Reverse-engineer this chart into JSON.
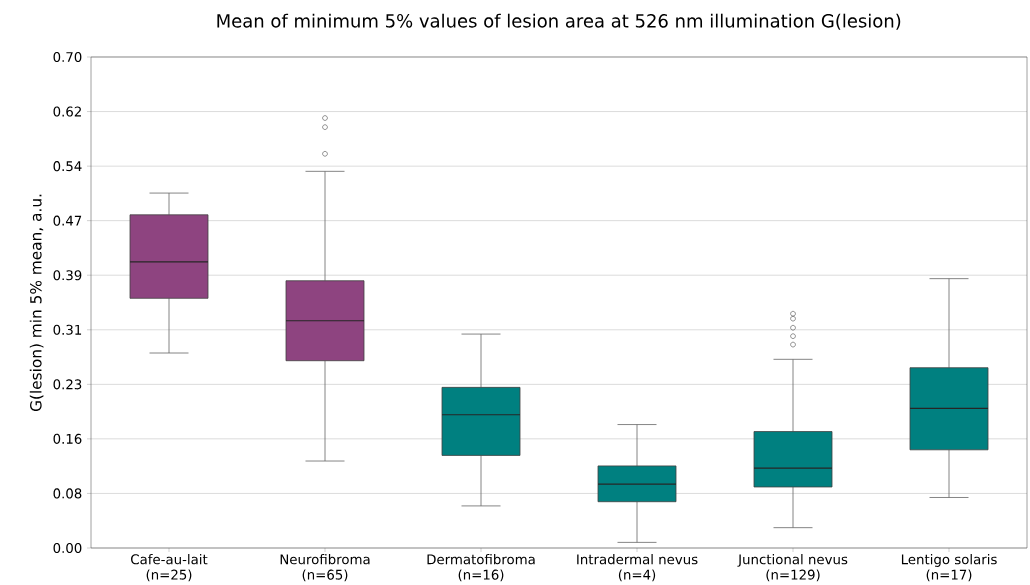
{
  "chart_data": {
    "type": "box",
    "title": "Mean of minimum 5% values of lesion area at 526 nm illumination G(lesion)",
    "ylabel": "G(lesion) min 5% mean, a.u.",
    "categories": [
      "Cafe-au-lait\n(n=25)",
      "Neurofibroma\n(n=65)",
      "Dermatofibroma\n(n=16)",
      "Intradermal nevus\n(n=4)",
      "Junctional nevus\n(n=129)",
      "Lentigo solaris\n(n=17)"
    ],
    "colors": [
      "#8e4480",
      "#8e4480",
      "#008080",
      "#008080",
      "#008080",
      "#008080"
    ],
    "boxes": [
      {
        "low": 0.278,
        "q1": 0.356,
        "median": 0.408,
        "q3": 0.475,
        "high": 0.506
      },
      {
        "low": 0.124,
        "q1": 0.267,
        "median": 0.324,
        "q3": 0.381,
        "high": 0.537,
        "outliers": [
          0.562,
          0.6,
          0.613
        ]
      },
      {
        "low": 0.06,
        "q1": 0.132,
        "median": 0.19,
        "q3": 0.229,
        "high": 0.305
      },
      {
        "low": 0.008,
        "q1": 0.066,
        "median": 0.091,
        "q3": 0.117,
        "high": 0.176
      },
      {
        "low": 0.029,
        "q1": 0.087,
        "median": 0.114,
        "q3": 0.166,
        "high": 0.269,
        "outliers": [
          0.29,
          0.302,
          0.314,
          0.327,
          0.334
        ]
      },
      {
        "low": 0.072,
        "q1": 0.14,
        "median": 0.199,
        "q3": 0.257,
        "high": 0.384
      }
    ],
    "ylim": [
      0,
      0.7
    ],
    "yticks": [
      {
        "value": 0,
        "label": "0.00"
      },
      {
        "value": 0.0778,
        "label": "0.08"
      },
      {
        "value": 0.1556,
        "label": "0.16"
      },
      {
        "value": 0.2333,
        "label": "0.23"
      },
      {
        "value": 0.3111,
        "label": "0.31"
      },
      {
        "value": 0.3889,
        "label": "0.39"
      },
      {
        "value": 0.4667,
        "label": "0.47"
      },
      {
        "value": 0.5444,
        "label": "0.54"
      },
      {
        "value": 0.6222,
        "label": "0.62"
      },
      {
        "value": 0.7,
        "label": "0.70"
      }
    ],
    "grid": "y"
  }
}
